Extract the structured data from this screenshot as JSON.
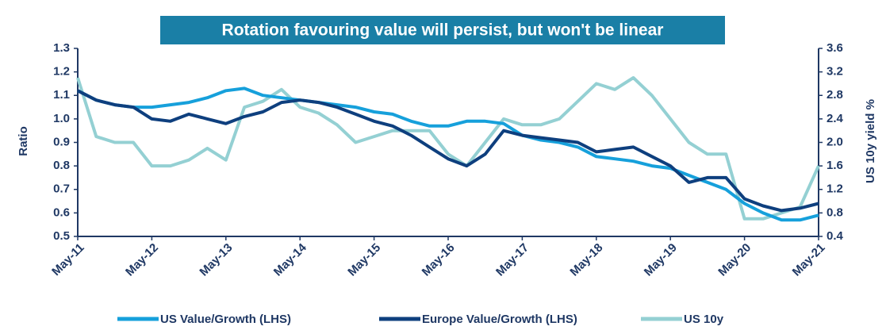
{
  "chart_data": {
    "type": "line",
    "title": "Rotation favouring value will persist, but won't be linear",
    "ylabel": "Ratio",
    "y2label": "US 10y yield %",
    "categories": [
      "May-11",
      null,
      null,
      null,
      "May-12",
      null,
      null,
      null,
      "May-13",
      null,
      null,
      null,
      "May-14",
      null,
      null,
      null,
      "May-15",
      null,
      null,
      null,
      "May-16",
      null,
      null,
      null,
      "May-17",
      null,
      null,
      null,
      "May-18",
      null,
      null,
      null,
      "May-19",
      null,
      null,
      null,
      "May-20",
      null,
      null,
      null,
      "May-21"
    ],
    "ylim": [
      0.5,
      1.3
    ],
    "yticks": [
      0.5,
      0.6,
      0.7,
      0.8,
      0.9,
      {
        "value": 1,
        "label": "1.0"
      },
      1.1,
      1.2,
      1.3
    ],
    "y2lim": [
      0.4,
      3.6
    ],
    "y2ticks": [
      0.4,
      0.8,
      1.2,
      1.6,
      {
        "value": 2,
        "label": "2.0"
      },
      2.4,
      2.8,
      3.2,
      3.6
    ],
    "series": [
      {
        "name": "US Value/Growth (LHS)",
        "color": "#16a0db",
        "values": [
          1.12,
          1.08,
          1.06,
          1.05,
          1.05,
          1.06,
          1.07,
          1.09,
          1.12,
          1.13,
          1.1,
          1.09,
          1.08,
          1.07,
          1.06,
          1.05,
          1.03,
          1.02,
          0.99,
          0.97,
          0.97,
          0.99,
          0.99,
          0.98,
          0.93,
          0.91,
          0.9,
          0.88,
          0.84,
          0.83,
          0.82,
          0.8,
          0.79,
          0.76,
          0.73,
          0.7,
          0.64,
          0.6,
          0.57,
          0.57,
          0.59
        ]
      },
      {
        "name": "Europe Value/Growth (LHS)",
        "color": "#0e3f7e",
        "values": [
          1.12,
          1.08,
          1.06,
          1.05,
          1.0,
          0.99,
          1.02,
          1.0,
          0.98,
          1.01,
          1.03,
          1.07,
          1.08,
          1.07,
          1.05,
          1.02,
          0.99,
          0.97,
          0.93,
          0.88,
          0.83,
          0.8,
          0.85,
          0.95,
          0.93,
          0.92,
          0.91,
          0.9,
          0.86,
          0.87,
          0.88,
          0.84,
          0.8,
          0.73,
          0.75,
          0.75,
          0.66,
          0.63,
          0.61,
          0.62,
          0.64
        ]
      },
      {
        "name": "US 10y",
        "color": "#94d0d3",
        "axis": "y2",
        "values": [
          3.1,
          2.1,
          2.0,
          2.0,
          1.6,
          1.6,
          1.7,
          1.9,
          1.7,
          2.6,
          2.7,
          2.9,
          2.6,
          2.5,
          2.3,
          2.0,
          2.1,
          2.2,
          2.2,
          2.2,
          1.8,
          1.6,
          2.0,
          2.4,
          2.3,
          2.3,
          2.4,
          2.7,
          3.0,
          2.9,
          3.1,
          2.8,
          2.4,
          2.0,
          1.8,
          1.8,
          0.7,
          0.7,
          0.8,
          0.9,
          1.6
        ]
      }
    ]
  }
}
